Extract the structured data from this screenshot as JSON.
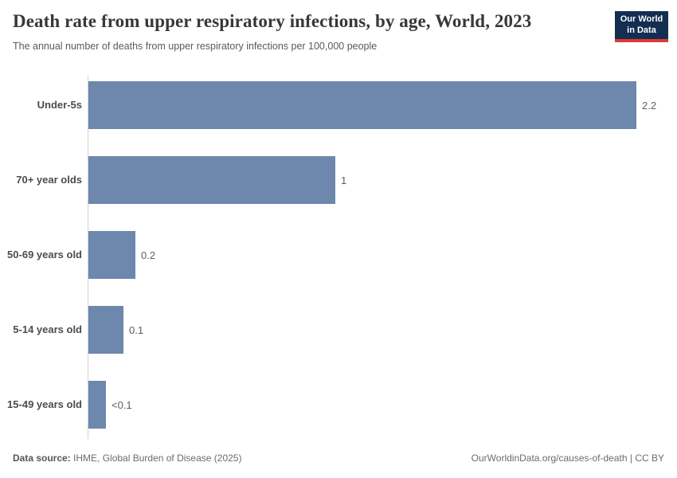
{
  "header": {
    "title": "Death rate from upper respiratory infections, by age, World, 2023",
    "subtitle": "The annual number of deaths from upper respiratory infections per 100,000 people",
    "logo": {
      "line1": "Our World",
      "line2": "in Data"
    }
  },
  "chart_data": {
    "type": "bar",
    "orientation": "horizontal",
    "title": "Death rate from upper respiratory infections, by age, World, 2023",
    "xlabel": "",
    "ylabel": "",
    "grid": false,
    "legend": false,
    "xlim": [
      0,
      2.2
    ],
    "categories": [
      "Under-5s",
      "70+ year olds",
      "50-69 years old",
      "5-14 years old",
      "15-49 years old"
    ],
    "values": [
      2.2,
      0.99,
      0.19,
      0.14,
      0.07
    ],
    "value_labels": [
      "2.2",
      "1",
      "0.2",
      "0.1",
      "<0.1"
    ],
    "bar_color": "#6e87ac"
  },
  "footer": {
    "source_label": "Data source:",
    "source_text": " IHME, Global Burden of Disease (2025)",
    "right_text": "OurWorldinData.org/causes-of-death | CC BY"
  },
  "colors": {
    "bar": "#6e87ac",
    "axis": "#d1d1d1",
    "title_text": "#383838",
    "logo_navy": "#142e52",
    "logo_red": "#dc3a33"
  }
}
